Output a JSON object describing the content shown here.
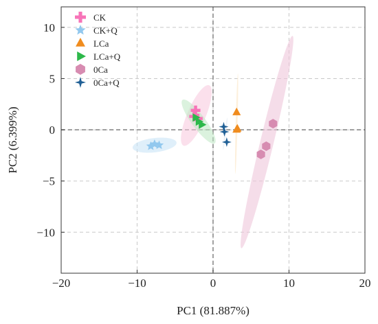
{
  "chart_data": {
    "type": "scatter",
    "xlabel": "PC1 (81.887%)",
    "ylabel": "PC2 (6.399%)",
    "xlim": [
      -20,
      20
    ],
    "ylim": [
      -14,
      12
    ],
    "xticks": [
      -20,
      -10,
      0,
      10,
      20
    ],
    "yticks": [
      -10,
      -5,
      0,
      5,
      10
    ],
    "xtick_labels": [
      "−20",
      "−10",
      "0",
      "10",
      "20"
    ],
    "ytick_labels": [
      "−10",
      "−5",
      "0",
      "5",
      "10"
    ],
    "grid": true,
    "zero_lines": true,
    "legend_position": "top-left",
    "series": [
      {
        "name": "CK",
        "marker": "plus",
        "color": "#f774b8",
        "points": [
          [
            -2.3,
            1.9
          ],
          [
            -2.5,
            1.3
          ],
          [
            -2.0,
            1.1
          ]
        ],
        "ellipse": {
          "cx": -2.2,
          "cy": 1.4,
          "semi_major": 3.4,
          "semi_minor": 1.1,
          "angle_deg": 60,
          "fill": "#f8c6dd",
          "opacity": 0.55
        }
      },
      {
        "name": "CK+Q",
        "marker": "star",
        "color": "#92c8ee",
        "points": [
          [
            -8.2,
            -1.6
          ],
          [
            -7.7,
            -1.4
          ],
          [
            -7.1,
            -1.5
          ]
        ],
        "ellipse": {
          "cx": -7.7,
          "cy": -1.5,
          "semi_major": 2.9,
          "semi_minor": 0.7,
          "angle_deg": 5,
          "fill": "#c9e4f6",
          "opacity": 0.6
        }
      },
      {
        "name": "LCa",
        "marker": "triangle-up",
        "color": "#f08c1e",
        "points": [
          [
            3.1,
            1.7
          ],
          [
            3.1,
            0.0
          ],
          [
            3.2,
            0.1
          ]
        ],
        "ellipse": {
          "cx": 3.1,
          "cy": 0.6,
          "semi_major": 4.9,
          "semi_minor": 0.12,
          "angle_deg": 88,
          "fill": "#fce6c4",
          "opacity": 0.6
        }
      },
      {
        "name": "LCa+Q",
        "marker": "triangle-right",
        "color": "#2db84a",
        "points": [
          [
            -2.3,
            1.2
          ],
          [
            -1.9,
            0.8
          ],
          [
            -1.5,
            0.5
          ]
        ],
        "ellipse": {
          "cx": -1.9,
          "cy": 0.8,
          "semi_major": 3.0,
          "semi_minor": 0.75,
          "angle_deg": -45,
          "fill": "#bde7c2",
          "opacity": 0.55
        }
      },
      {
        "name": "0Ca",
        "marker": "hexagon",
        "color": "#d78cb1",
        "points": [
          [
            7.9,
            0.6
          ],
          [
            7.0,
            -1.6
          ],
          [
            6.3,
            -2.4
          ]
        ],
        "ellipse": {
          "cx": 7.1,
          "cy": -1.2,
          "semi_major": 10.9,
          "semi_minor": 0.85,
          "angle_deg": 72,
          "fill": "#efc6da",
          "opacity": 0.6
        }
      },
      {
        "name": "0Ca+Q",
        "marker": "star4",
        "color": "#1f5f95",
        "points": [
          [
            1.4,
            0.3
          ],
          [
            1.5,
            -0.2
          ],
          [
            1.8,
            -1.2
          ]
        ],
        "ellipse": {
          "cx": 1.6,
          "cy": -0.4,
          "semi_major": 1.6,
          "semi_minor": 0.12,
          "angle_deg": 80,
          "fill": "#c6d8e8",
          "opacity": 0.3
        }
      }
    ]
  }
}
